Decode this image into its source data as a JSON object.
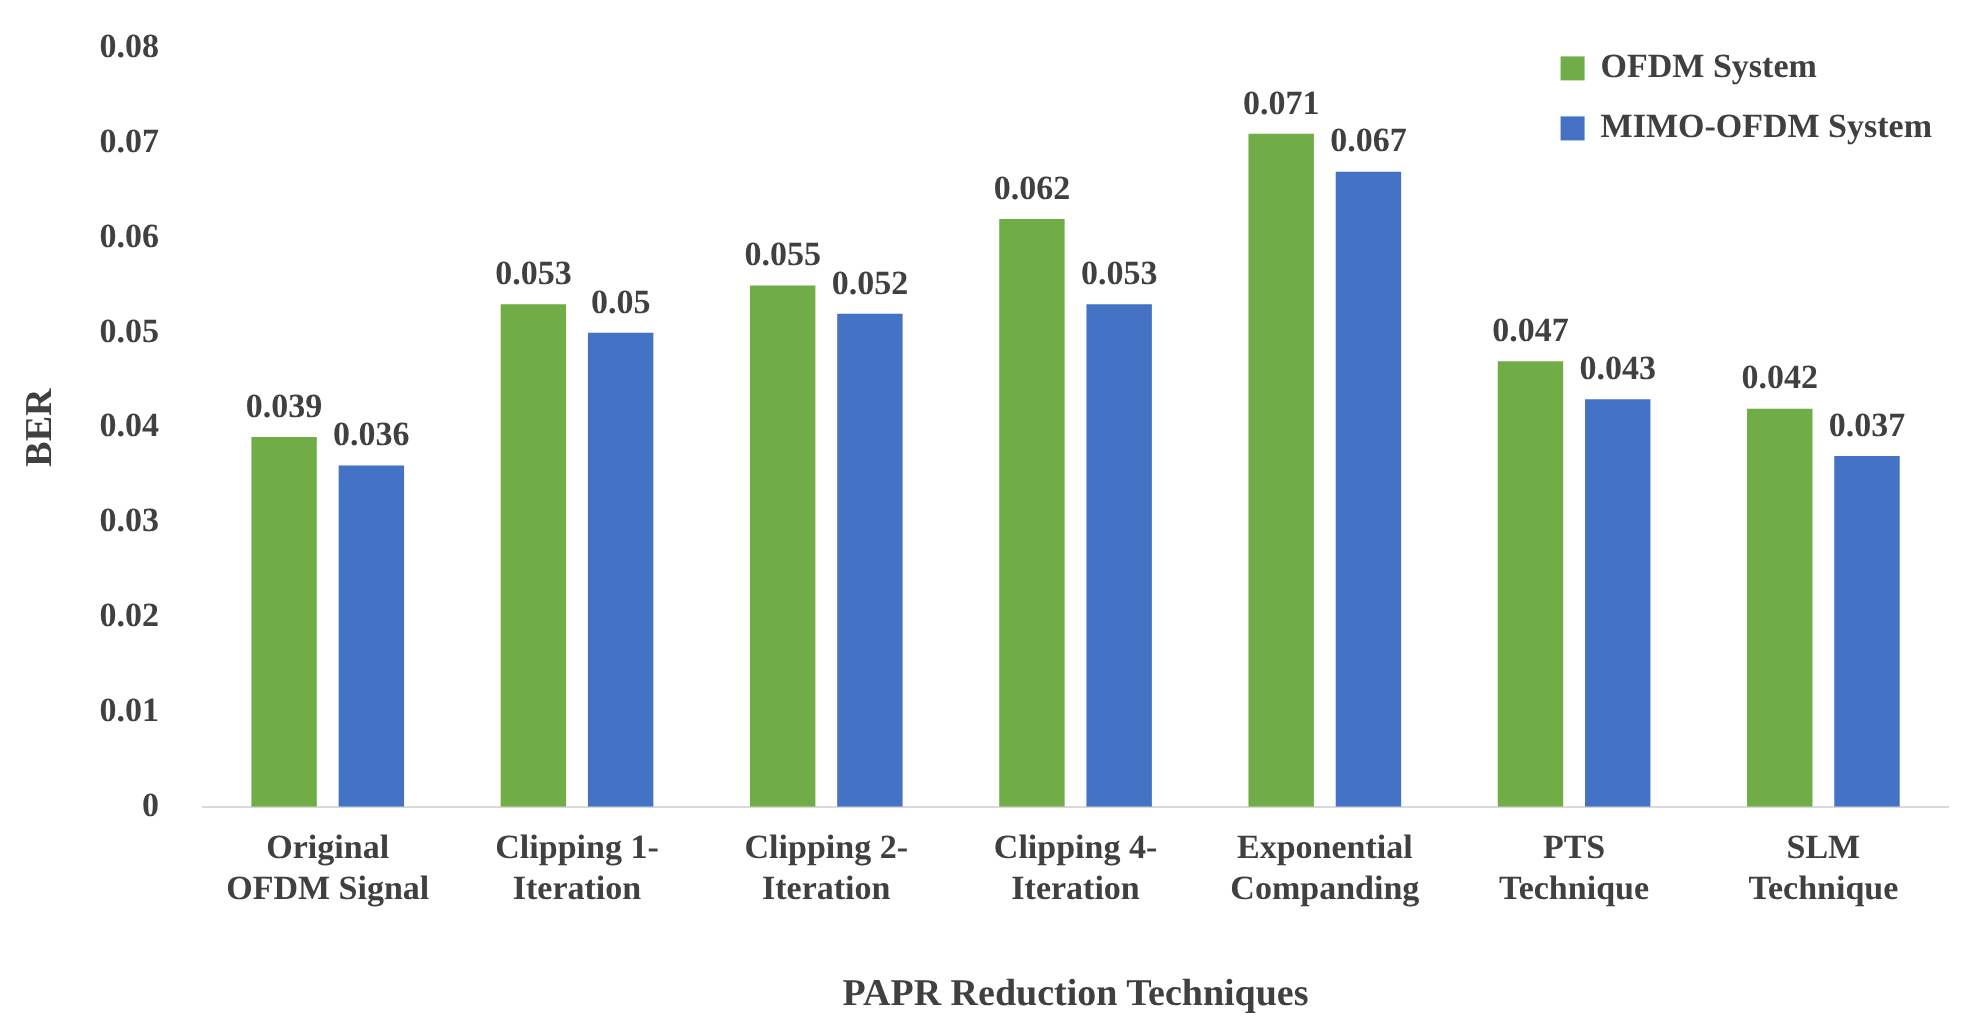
{
  "chart_data": {
    "type": "bar",
    "xlabel": "PAPR Reduction Techniques",
    "ylabel": "BER",
    "categories": [
      "Original\nOFDM Signal",
      "Clipping 1-\nIteration",
      "Clipping 2-\nIteration",
      "Clipping 4-\nIteration",
      "Exponential\nCompanding",
      "PTS\nTechnique",
      "SLM\nTechnique"
    ],
    "series": [
      {
        "name": "OFDM System",
        "color": "#70ad47",
        "values": [
          0.039,
          0.053,
          0.055,
          0.062,
          0.071,
          0.047,
          0.042
        ]
      },
      {
        "name": "MIMO-OFDM System",
        "color": "#4472c4",
        "values": [
          0.036,
          0.05,
          0.052,
          0.053,
          0.067,
          0.043,
          0.037
        ]
      }
    ],
    "ylim": [
      0,
      0.08
    ],
    "yticks": [
      0,
      0.01,
      0.02,
      0.03,
      0.04,
      0.05,
      0.06,
      0.07,
      0.08
    ],
    "grid": false,
    "legend": "top right",
    "data_labels": true
  }
}
